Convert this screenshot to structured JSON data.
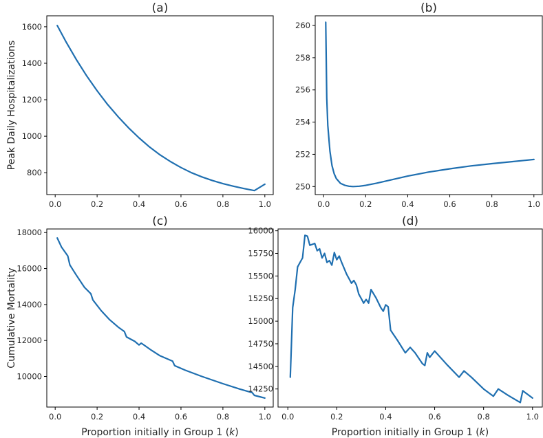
{
  "figure": {
    "line_color": "#1f6fb0",
    "shared_xlabel": "Proportion initially in Group 1 (k)"
  },
  "chart_data": [
    {
      "id": "a",
      "type": "line",
      "title": "(a)",
      "xlabel": "",
      "ylabel": "Peak Daily Hospitalizations",
      "xlim": [
        -0.04,
        1.04
      ],
      "ylim": [
        680,
        1660
      ],
      "xticks": [
        0.0,
        0.2,
        0.4,
        0.6,
        0.8,
        1.0
      ],
      "xtick_labels": [
        "0.0",
        "0.2",
        "0.4",
        "0.6",
        "0.8",
        "1.0"
      ],
      "yticks": [
        800,
        1000,
        1200,
        1400,
        1600
      ],
      "ytick_labels": [
        "800",
        "1000",
        "1200",
        "1400",
        "1600"
      ],
      "series": [
        {
          "name": "a",
          "x": [
            0.01,
            0.05,
            0.1,
            0.15,
            0.2,
            0.25,
            0.3,
            0.35,
            0.4,
            0.45,
            0.5,
            0.55,
            0.6,
            0.65,
            0.7,
            0.75,
            0.8,
            0.85,
            0.9,
            0.95,
            1.0
          ],
          "y": [
            1607,
            1521,
            1422,
            1331,
            1249,
            1174,
            1107,
            1046,
            991,
            941,
            898,
            861,
            828,
            800,
            777,
            757,
            740,
            726,
            713,
            702,
            737
          ]
        }
      ]
    },
    {
      "id": "b",
      "type": "line",
      "title": "(b)",
      "xlabel": "",
      "ylabel": "",
      "xlim": [
        -0.04,
        1.04
      ],
      "ylim": [
        249.5,
        260.6
      ],
      "xticks": [
        0.0,
        0.2,
        0.4,
        0.6,
        0.8,
        1.0
      ],
      "xtick_labels": [
        "0.0",
        "0.2",
        "0.4",
        "0.6",
        "0.8",
        "1.0"
      ],
      "yticks": [
        250,
        252,
        254,
        256,
        258,
        260
      ],
      "ytick_labels": [
        "250",
        "252",
        "254",
        "256",
        "258",
        "260"
      ],
      "series": [
        {
          "name": "b",
          "x": [
            0.01,
            0.015,
            0.02,
            0.03,
            0.04,
            0.05,
            0.06,
            0.08,
            0.1,
            0.12,
            0.14,
            0.17,
            0.2,
            0.25,
            0.3,
            0.4,
            0.5,
            0.6,
            0.7,
            0.8,
            0.9,
            1.0
          ],
          "y": [
            260.2,
            255.5,
            253.8,
            252.2,
            251.3,
            250.8,
            250.5,
            250.2,
            250.08,
            250.02,
            250.0,
            250.02,
            250.07,
            250.2,
            250.35,
            250.65,
            250.9,
            251.1,
            251.28,
            251.42,
            251.55,
            251.68
          ]
        }
      ]
    },
    {
      "id": "c",
      "type": "line",
      "title": "(c)",
      "xlabel": "Proportion initially in Group 1 (k)",
      "ylabel": "Cumulative Mortality",
      "xlim": [
        -0.04,
        1.04
      ],
      "ylim": [
        8300,
        18200
      ],
      "xticks": [
        0.0,
        0.2,
        0.4,
        0.6,
        0.8,
        1.0
      ],
      "xtick_labels": [
        "0.0",
        "0.2",
        "0.4",
        "0.6",
        "0.8",
        "1.0"
      ],
      "yticks": [
        10000,
        12000,
        14000,
        16000,
        18000
      ],
      "ytick_labels": [
        "10000",
        "12000",
        "14000",
        "16000",
        "18000"
      ],
      "series": [
        {
          "name": "c",
          "x": [
            0.01,
            0.03,
            0.06,
            0.07,
            0.1,
            0.14,
            0.17,
            0.18,
            0.22,
            0.26,
            0.3,
            0.33,
            0.34,
            0.38,
            0.4,
            0.41,
            0.42,
            0.46,
            0.5,
            0.56,
            0.57,
            0.62,
            0.7,
            0.8,
            0.88,
            0.94,
            0.95,
            1.0
          ],
          "y": [
            17700,
            17200,
            16700,
            16200,
            15650,
            14950,
            14600,
            14250,
            13650,
            13150,
            12750,
            12500,
            12200,
            11950,
            11750,
            11850,
            11780,
            11450,
            11150,
            10850,
            10600,
            10350,
            10000,
            9600,
            9300,
            9100,
            8950,
            8800
          ]
        }
      ]
    },
    {
      "id": "d",
      "type": "line",
      "title": "(d)",
      "xlabel": "Proportion initially in Group 1 (k)",
      "ylabel": "",
      "xlim": [
        -0.04,
        1.04
      ],
      "ylim": [
        14050,
        16020
      ],
      "xticks": [
        0.0,
        0.2,
        0.4,
        0.6,
        0.8,
        1.0
      ],
      "xtick_labels": [
        "0.0",
        "0.2",
        "0.4",
        "0.6",
        "0.8",
        "1.0"
      ],
      "yticks": [
        14250,
        14500,
        14750,
        15000,
        15250,
        15500,
        15750,
        16000
      ],
      "ytick_labels": [
        "14250",
        "14500",
        "14750",
        "15000",
        "15250",
        "15500",
        "15750",
        "16000"
      ],
      "series": [
        {
          "name": "d",
          "x": [
            0.01,
            0.02,
            0.03,
            0.04,
            0.05,
            0.06,
            0.07,
            0.08,
            0.09,
            0.1,
            0.11,
            0.12,
            0.13,
            0.14,
            0.15,
            0.16,
            0.17,
            0.18,
            0.19,
            0.2,
            0.21,
            0.22,
            0.24,
            0.26,
            0.27,
            0.28,
            0.29,
            0.3,
            0.31,
            0.32,
            0.33,
            0.34,
            0.36,
            0.38,
            0.39,
            0.4,
            0.41,
            0.42,
            0.45,
            0.48,
            0.5,
            0.52,
            0.55,
            0.56,
            0.57,
            0.58,
            0.6,
            0.65,
            0.7,
            0.72,
            0.75,
            0.8,
            0.84,
            0.86,
            0.9,
            0.95,
            0.96,
            1.0
          ],
          "y": [
            14380,
            15150,
            15350,
            15600,
            15650,
            15700,
            15950,
            15940,
            15840,
            15850,
            15860,
            15780,
            15800,
            15700,
            15750,
            15650,
            15670,
            15620,
            15760,
            15680,
            15720,
            15650,
            15520,
            15420,
            15450,
            15400,
            15300,
            15250,
            15200,
            15240,
            15200,
            15350,
            15260,
            15150,
            15110,
            15180,
            15160,
            14900,
            14780,
            14650,
            14710,
            14650,
            14530,
            14510,
            14650,
            14600,
            14670,
            14520,
            14380,
            14450,
            14380,
            14250,
            14170,
            14250,
            14180,
            14100,
            14230,
            14150
          ]
        }
      ]
    }
  ]
}
